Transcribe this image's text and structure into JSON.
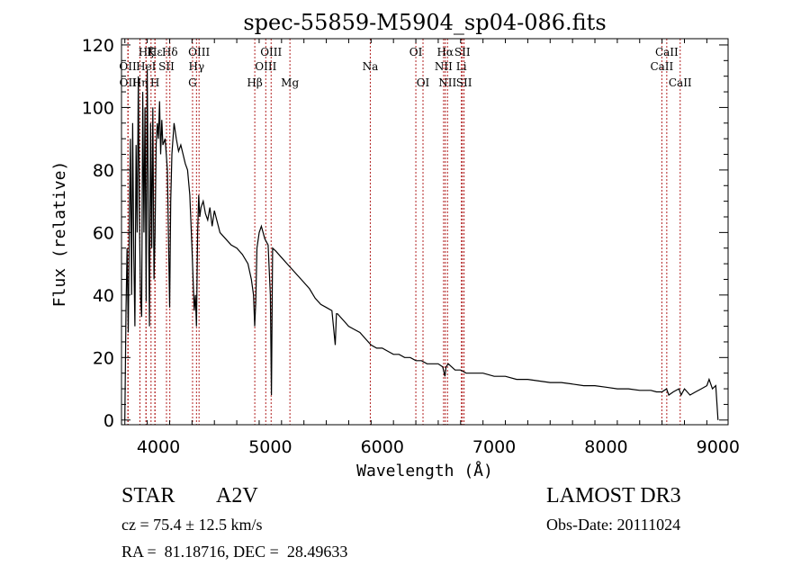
{
  "chart_data": {
    "type": "line",
    "title": "spec-55859-M5904_sp04-086.fits",
    "xlabel": "Wavelength (Å)",
    "ylabel": "Flux (relative)",
    "xlim": [
      3670,
      9090
    ],
    "ylim": [
      -1.5,
      122
    ],
    "xticks": [
      4000,
      5000,
      6000,
      7000,
      8000,
      9000
    ],
    "yticks": [
      0,
      20,
      40,
      60,
      80,
      100,
      120
    ],
    "grid": false,
    "series": [
      {
        "name": "spectrum",
        "x": [
          3700,
          3710,
          3720,
          3730,
          3740,
          3750,
          3760,
          3770,
          3780,
          3790,
          3800,
          3810,
          3820,
          3830,
          3840,
          3850,
          3860,
          3870,
          3880,
          3890,
          3900,
          3910,
          3920,
          3930,
          3940,
          3950,
          3960,
          3970,
          3980,
          3990,
          4000,
          4010,
          4020,
          4030,
          4040,
          4060,
          4080,
          4100,
          4110,
          4120,
          4140,
          4160,
          4180,
          4200,
          4220,
          4240,
          4260,
          4280,
          4300,
          4320,
          4330,
          4340,
          4350,
          4360,
          4370,
          4380,
          4400,
          4420,
          4440,
          4460,
          4480,
          4500,
          4550,
          4600,
          4650,
          4700,
          4750,
          4800,
          4830,
          4850,
          4860,
          4870,
          4880,
          4900,
          4920,
          4950,
          4980,
          5000,
          5010,
          5020,
          5050,
          5100,
          5150,
          5200,
          5250,
          5300,
          5350,
          5400,
          5450,
          5500,
          5550,
          5580,
          5590,
          5600,
          5650,
          5700,
          5750,
          5800,
          5850,
          5900,
          5950,
          6000,
          6050,
          6100,
          6150,
          6200,
          6250,
          6300,
          6350,
          6400,
          6450,
          6500,
          6540,
          6560,
          6570,
          6590,
          6620,
          6650,
          6700,
          6750,
          6800,
          6900,
          7000,
          7100,
          7200,
          7300,
          7400,
          7500,
          7600,
          7700,
          7800,
          7900,
          8000,
          8100,
          8200,
          8300,
          8400,
          8450,
          8500,
          8540,
          8560,
          8600,
          8650,
          8670,
          8700,
          8750,
          8800,
          8850,
          8900,
          8920,
          8950,
          8980,
          9000
        ],
        "y": [
          0,
          35,
          55,
          28,
          62,
          90,
          40,
          95,
          52,
          30,
          88,
          60,
          110,
          65,
          40,
          33,
          105,
          60,
          100,
          38,
          112,
          70,
          30,
          95,
          55,
          100,
          45,
          60,
          88,
          95,
          90,
          102,
          85,
          96,
          88,
          90,
          80,
          36,
          70,
          85,
          95,
          90,
          86,
          88,
          85,
          82,
          80,
          72,
          55,
          35,
          40,
          30,
          60,
          72,
          65,
          68,
          70,
          66,
          64,
          68,
          62,
          67,
          60,
          58,
          56,
          55,
          53,
          50,
          45,
          40,
          30,
          38,
          55,
          60,
          62,
          58,
          56,
          40,
          8,
          55,
          54,
          52,
          50,
          48,
          46,
          44,
          42,
          39,
          37,
          36,
          35,
          24,
          34,
          34,
          32,
          30,
          29,
          28,
          26,
          24,
          23,
          23,
          22,
          21,
          21,
          20,
          20,
          19,
          19,
          18,
          18,
          18,
          17,
          14,
          17,
          18,
          17,
          16,
          16,
          15,
          15,
          15,
          14,
          14,
          13,
          13,
          12.5,
          12,
          12,
          11.5,
          11,
          11,
          10.5,
          10,
          10,
          9.5,
          9.5,
          9,
          9,
          10,
          8,
          9,
          10,
          8,
          10,
          8,
          9,
          10,
          11,
          13,
          10,
          11,
          0
        ]
      }
    ],
    "line_markers": [
      {
        "label": "Hε",
        "row": 1,
        "wavelength": 3970
      },
      {
        "label": "Hζ",
        "row": 1,
        "wavelength": 3889
      },
      {
        "label": "K",
        "row": 1,
        "wavelength": 3934
      },
      {
        "label": "Hδ",
        "row": 1,
        "wavelength": 4102
      },
      {
        "label": "OIII",
        "row": 1,
        "wavelength": 4363
      },
      {
        "label": "OIII",
        "row": 1,
        "wavelength": 5007
      },
      {
        "label": "OI",
        "row": 1,
        "wavelength": 6300
      },
      {
        "label": "Hα",
        "row": 1,
        "wavelength": 6563
      },
      {
        "label": "SII",
        "row": 1,
        "wavelength": 6716
      },
      {
        "label": "CaII",
        "row": 1,
        "wavelength": 8542
      },
      {
        "label": "OII",
        "row": 2,
        "wavelength": 3727
      },
      {
        "label": "HeI",
        "row": 2,
        "wavelength": 3889
      },
      {
        "label": "SII",
        "row": 2,
        "wavelength": 4072
      },
      {
        "label": "Hγ",
        "row": 2,
        "wavelength": 4340
      },
      {
        "label": "OIII",
        "row": 2,
        "wavelength": 4959
      },
      {
        "label": "Na",
        "row": 2,
        "wavelength": 5893
      },
      {
        "label": "NII",
        "row": 2,
        "wavelength": 6548
      },
      {
        "label": "Li",
        "row": 2,
        "wavelength": 6707
      },
      {
        "label": "CaII",
        "row": 2,
        "wavelength": 8498
      },
      {
        "label": "OII",
        "row": 3,
        "wavelength": 3729
      },
      {
        "label": "Hη",
        "row": 3,
        "wavelength": 3835
      },
      {
        "label": "H",
        "row": 3,
        "wavelength": 3968
      },
      {
        "label": "G",
        "row": 3,
        "wavelength": 4305
      },
      {
        "label": "Hβ",
        "row": 3,
        "wavelength": 4861
      },
      {
        "label": "Mg",
        "row": 3,
        "wavelength": 5175
      },
      {
        "label": "OI",
        "row": 3,
        "wavelength": 6364
      },
      {
        "label": "NII",
        "row": 3,
        "wavelength": 6583
      },
      {
        "label": "SII",
        "row": 3,
        "wavelength": 6731
      },
      {
        "label": "CaII",
        "row": 3,
        "wavelength": 8662
      }
    ],
    "marker_color": "#b22222"
  },
  "info": {
    "object_class": "STAR",
    "subclass": "A2V",
    "survey": "LAMOST DR3",
    "redshift_text": "cz = 75.4 ± 12.5 km/s",
    "obs_date_text": "Obs-Date: 20111024",
    "coords_text": "RA =  81.18716, DEC =  28.49633"
  }
}
